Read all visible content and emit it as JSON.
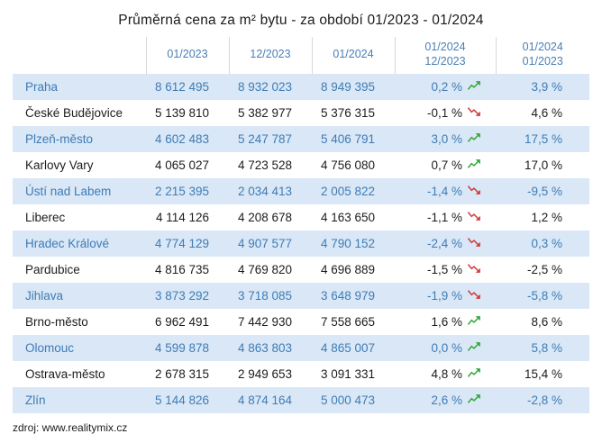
{
  "title": "Průměrná cena za m²  bytu  -  za období 01/2023  -  01/2024",
  "source": "zdroj: www.realitymix.cz",
  "colors": {
    "header_text": "#4a7fb5",
    "row_alt_bg": "#d9e7f6",
    "row_alt_text": "#3f7cb5",
    "positive": "#35a83c",
    "negative": "#d23c3c"
  },
  "chart_data": {
    "type": "table",
    "header": {
      "city": "",
      "cols": [
        "01/2023",
        "12/2023",
        "01/2024"
      ],
      "change1": {
        "top": "01/2024",
        "bottom": "12/2023"
      },
      "change2": {
        "top": "01/2024",
        "bottom": "01/2023"
      }
    },
    "rows": [
      {
        "city": "Praha",
        "values": [
          "8 612 495",
          "8 932 023",
          "8 949 395"
        ],
        "change_month": "0,2 %",
        "trend": "up",
        "change_year": "3,9 %"
      },
      {
        "city": "České Budějovice",
        "values": [
          "5 139 810",
          "5 382 977",
          "5 376 315"
        ],
        "change_month": "-0,1 %",
        "trend": "down",
        "change_year": "4,6 %"
      },
      {
        "city": "Plzeň-město",
        "values": [
          "4 602 483",
          "5 247 787",
          "5 406 791"
        ],
        "change_month": "3,0 %",
        "trend": "up",
        "change_year": "17,5 %"
      },
      {
        "city": "Karlovy Vary",
        "values": [
          "4 065 027",
          "4 723 528",
          "4 756 080"
        ],
        "change_month": "0,7 %",
        "trend": "up",
        "change_year": "17,0 %"
      },
      {
        "city": "Ústí nad Labem",
        "values": [
          "2 215 395",
          "2 034 413",
          "2 005 822"
        ],
        "change_month": "-1,4 %",
        "trend": "down",
        "change_year": "-9,5 %"
      },
      {
        "city": "Liberec",
        "values": [
          "4 114 126",
          "4 208 678",
          "4 163 650"
        ],
        "change_month": "-1,1 %",
        "trend": "down",
        "change_year": "1,2 %"
      },
      {
        "city": "Hradec Králové",
        "values": [
          "4 774 129",
          "4 907 577",
          "4 790 152"
        ],
        "change_month": "-2,4 %",
        "trend": "down",
        "change_year": "0,3 %"
      },
      {
        "city": "Pardubice",
        "values": [
          "4 816 735",
          "4 769 820",
          "4 696 889"
        ],
        "change_month": "-1,5 %",
        "trend": "down",
        "change_year": "-2,5 %"
      },
      {
        "city": "Jihlava",
        "values": [
          "3 873 292",
          "3 718 085",
          "3 648 979"
        ],
        "change_month": "-1,9 %",
        "trend": "down",
        "change_year": "-5,8 %"
      },
      {
        "city": "Brno-město",
        "values": [
          "6 962 491",
          "7 442 930",
          "7 558 665"
        ],
        "change_month": "1,6 %",
        "trend": "up",
        "change_year": "8,6 %"
      },
      {
        "city": "Olomouc",
        "values": [
          "4 599 878",
          "4 863 803",
          "4 865 007"
        ],
        "change_month": "0,0 %",
        "trend": "up",
        "change_year": "5,8 %"
      },
      {
        "city": "Ostrava-město",
        "values": [
          "2 678 315",
          "2 949 653",
          "3 091 331"
        ],
        "change_month": "4,8 %",
        "trend": "up",
        "change_year": "15,4 %"
      },
      {
        "city": "Zlín",
        "values": [
          "5 144 826",
          "4 874 164",
          "5 000 473"
        ],
        "change_month": "2,6 %",
        "trend": "up",
        "change_year": "-2,8 %"
      }
    ]
  }
}
